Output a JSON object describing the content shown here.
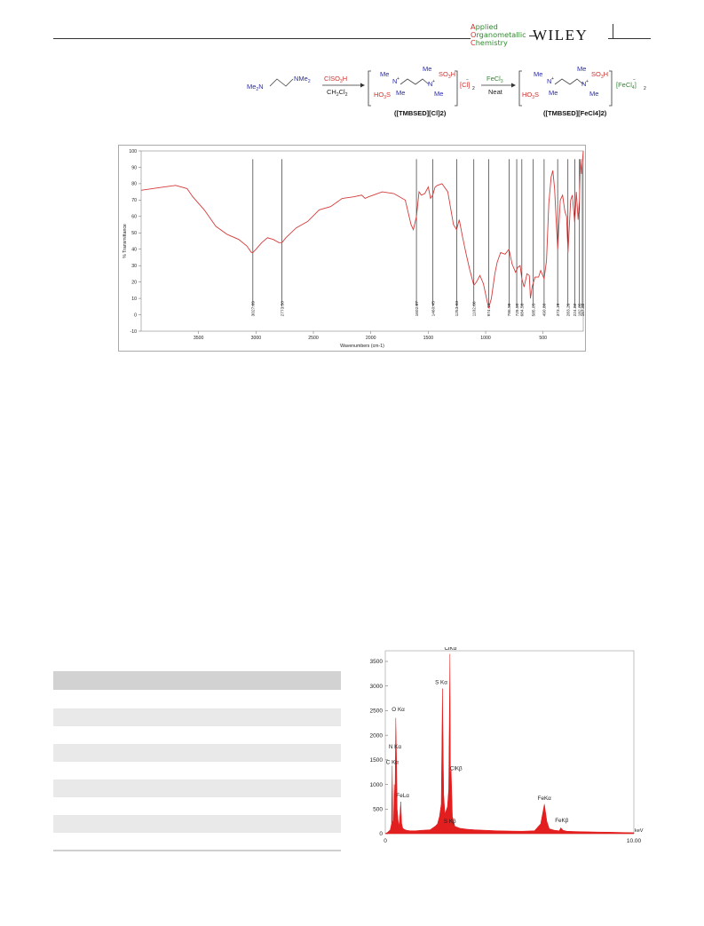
{
  "header": {
    "journal_line1": "Applied",
    "journal_line2": "Organometallic",
    "journal_line3": "Chemistry",
    "publisher": "WILEY"
  },
  "scheme": {
    "reactant": "Me2N–CH2CH2–NMe2",
    "reagent1_top": "ClSO3H",
    "reagent1_bottom": "CH2Cl2",
    "intermediate_label": "([TMBSED][Cl]2)",
    "reagent2_top": "FeCl3",
    "reagent2_bottom": "Neat",
    "product_label": "([TMBSED][FeCl4]2)"
  },
  "ir_chart": {
    "chart_data": {
      "type": "line",
      "title": "",
      "xlabel": "Wavenumbers (cm-1)",
      "ylabel": "% Transmittance",
      "xlim": [
        4000,
        150
      ],
      "x_reversed": true,
      "ylim": [
        -10,
        100
      ],
      "xticks": [
        3500,
        3000,
        2500,
        2000,
        1500,
        1000,
        500
      ],
      "yticks": [
        -10,
        0,
        10,
        20,
        30,
        40,
        50,
        60,
        70,
        80,
        90,
        100
      ],
      "series": [
        {
          "color": "#d63b3b",
          "x": [
            4000,
            3900,
            3800,
            3700,
            3600,
            3550,
            3450,
            3350,
            3250,
            3150,
            3080,
            3040,
            3027,
            3000,
            2950,
            2900,
            2850,
            2800,
            2774,
            2740,
            2650,
            2550,
            2450,
            2350,
            2250,
            2150,
            2080,
            2050,
            2020,
            1980,
            1900,
            1800,
            1700,
            1650,
            1630,
            1603,
            1580,
            1560,
            1530,
            1500,
            1480,
            1461,
            1440,
            1420,
            1380,
            1330,
            1280,
            1253,
            1230,
            1200,
            1170,
            1140,
            1103,
            1080,
            1050,
            1020,
            974,
            950,
            920,
            900,
            870,
            830,
            797,
            770,
            740,
            720,
            700,
            685,
            665,
            640,
            620,
            610,
            595,
            570,
            540,
            520,
            491,
            470,
            450,
            430,
            415,
            400,
            390,
            373,
            350,
            330,
            310,
            295,
            283,
            260,
            245,
            224,
            210,
            195,
            183,
            175,
            165,
            158,
            150
          ],
          "y": [
            76,
            77,
            78,
            79,
            77,
            72,
            64,
            54,
            49,
            46,
            42,
            38,
            38,
            40,
            44,
            47,
            46,
            44,
            44,
            47,
            53,
            57,
            64,
            66,
            71,
            72,
            73,
            71,
            72,
            73,
            75,
            74,
            70,
            55,
            52,
            60,
            75,
            73,
            74,
            78,
            71,
            73,
            78,
            79,
            80,
            75,
            55,
            52,
            58,
            47,
            37,
            28,
            18,
            20,
            24,
            19,
            4,
            10,
            25,
            32,
            38,
            37,
            40,
            31,
            26,
            29,
            30,
            22,
            17,
            25,
            24,
            10,
            17,
            23,
            23,
            27,
            22,
            33,
            68,
            84,
            88,
            77,
            63,
            40,
            70,
            73,
            63,
            60,
            38,
            70,
            73,
            56,
            75,
            58,
            70,
            95,
            86,
            93,
            100
          ]
        }
      ],
      "annotations": [
        {
          "x": 3027.09,
          "label": "3027.09"
        },
        {
          "x": 2773.5,
          "label": "2773.50"
        },
        {
          "x": 1602.87,
          "label": "1602.87"
        },
        {
          "x": 1460.45,
          "label": "1460.45"
        },
        {
          "x": 1253.03,
          "label": "1253.03"
        },
        {
          "x": 1102.66,
          "label": "1102.66"
        },
        {
          "x": 974.14,
          "label": "974.14"
        },
        {
          "x": 796.98,
          "label": "796.98"
        },
        {
          "x": 729.5,
          "label": "729.50"
        },
        {
          "x": 684.58,
          "label": "684.58"
        },
        {
          "x": 585.05,
          "label": "585.05"
        },
        {
          "x": 490.8,
          "label": "490.80"
        },
        {
          "x": 373.19,
          "label": "373.19"
        },
        {
          "x": 283.26,
          "label": "283.26"
        },
        {
          "x": 224.82,
          "label": "224.82"
        },
        {
          "x": 182.85,
          "label": "182.85"
        },
        {
          "x": 157.82,
          "label": "157.82"
        }
      ],
      "grid": false
    }
  },
  "table": {
    "rows": 10
  },
  "edx_chart": {
    "chart_data": {
      "type": "area",
      "title": "",
      "xlabel": "keV",
      "ylabel": "",
      "xlim": [
        0,
        10
      ],
      "ylim": [
        0,
        3500
      ],
      "yticks": [
        0,
        500,
        1000,
        1500,
        2000,
        2500,
        3000,
        3500
      ],
      "xtick_labels": [
        "0",
        "10.00"
      ],
      "fill_color": "#e31e1e",
      "x": [
        0,
        0.1,
        0.2,
        0.25,
        0.28,
        0.3,
        0.33,
        0.36,
        0.39,
        0.42,
        0.45,
        0.48,
        0.52,
        0.56,
        0.62,
        0.66,
        0.7,
        0.75,
        0.85,
        1.0,
        1.2,
        1.5,
        1.8,
        2.0,
        2.1,
        2.18,
        2.25,
        2.3,
        2.35,
        2.4,
        2.5,
        2.55,
        2.6,
        2.62,
        2.65,
        2.7,
        2.8,
        3.0,
        3.3,
        3.6,
        4.0,
        4.5,
        5.0,
        5.5,
        6.0,
        6.25,
        6.4,
        6.5,
        6.6,
        6.8,
        7.0,
        7.06,
        7.15,
        7.3,
        7.6,
        8.0,
        8.5,
        9.0,
        9.5,
        10.0
      ],
      "y": [
        0,
        30,
        80,
        200,
        1380,
        260,
        240,
        1000,
        700,
        2350,
        1600,
        500,
        250,
        150,
        650,
        200,
        120,
        90,
        70,
        60,
        60,
        70,
        80,
        150,
        200,
        350,
        600,
        2950,
        800,
        400,
        550,
        900,
        3650,
        1200,
        1300,
        350,
        150,
        110,
        90,
        80,
        70,
        60,
        55,
        50,
        60,
        200,
        600,
        250,
        100,
        70,
        60,
        120,
        70,
        50,
        45,
        40,
        35,
        30,
        25,
        20
      ],
      "annotations": [
        {
          "x": 0.28,
          "y": 1380,
          "label": "C Kα"
        },
        {
          "x": 0.39,
          "y": 1700,
          "label": "N Kα"
        },
        {
          "x": 0.52,
          "y": 2450,
          "label": "O Kα"
        },
        {
          "x": 0.7,
          "y": 700,
          "label": "FeLα"
        },
        {
          "x": 2.25,
          "y": 3000,
          "label": "S Kα"
        },
        {
          "x": 2.62,
          "y": 3700,
          "label": "ClKα"
        },
        {
          "x": 2.85,
          "y": 1250,
          "label": "ClKβ"
        },
        {
          "x": 2.6,
          "y": 180,
          "label": "S Kβ"
        },
        {
          "x": 6.4,
          "y": 650,
          "label": "FeKα"
        },
        {
          "x": 7.1,
          "y": 200,
          "label": "FeKβ"
        }
      ]
    }
  }
}
